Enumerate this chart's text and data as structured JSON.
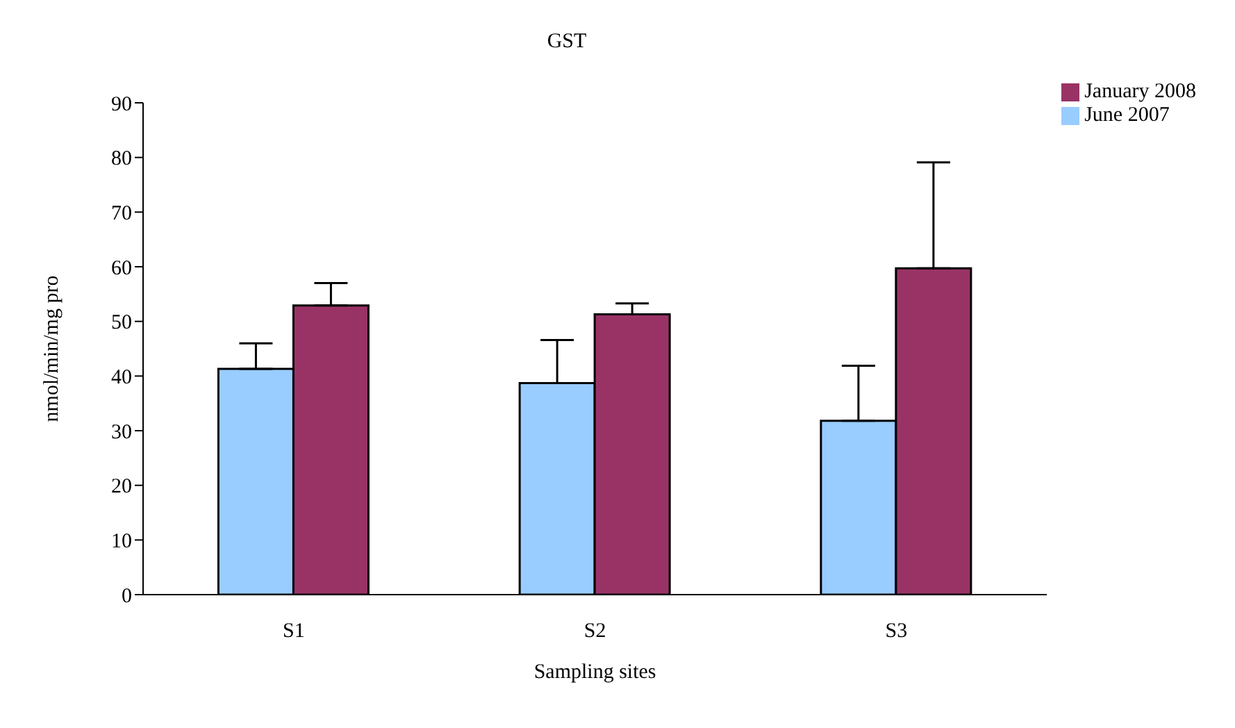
{
  "chart_data": {
    "type": "bar",
    "title": "GST",
    "xlabel": "Sampling sites",
    "ylabel": "nmol/min/mg pro",
    "categories": [
      "S1",
      "S2",
      "S3"
    ],
    "series": [
      {
        "name": "June 2007",
        "color": "#99ccff",
        "values": [
          41.3,
          38.7,
          31.8
        ],
        "errors": [
          [
            41.3,
            46.0
          ],
          [
            38.7,
            46.6
          ],
          [
            31.8,
            41.9
          ]
        ]
      },
      {
        "name": "January 2008",
        "color": "#993366",
        "values": [
          52.9,
          51.3,
          59.7
        ],
        "errors": [
          [
            52.9,
            57.0
          ],
          [
            51.3,
            53.3
          ],
          [
            59.7,
            79.1
          ]
        ]
      }
    ],
    "ylim": [
      0,
      90
    ],
    "yticks": [
      0,
      10,
      20,
      30,
      40,
      50,
      60,
      70,
      80,
      90
    ],
    "grid": false,
    "legend": "top right"
  }
}
